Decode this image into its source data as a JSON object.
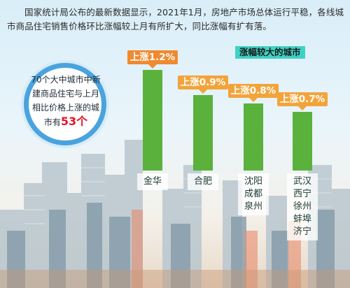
{
  "headline": "国家统计局公布的最新数据显示，2021年1月，房地产市场总体运行平稳，各线城市商品住宅销售价格环比涨幅较上月有所扩大，同比涨幅有扩有落。",
  "callout": {
    "title": "涨幅较大的城市"
  },
  "summary": {
    "text": "70个大中城市中新建商品住宅与上月相比价格上涨的城市有",
    "count": "53个"
  },
  "colors": {
    "bar": "#5ab23c",
    "label": "#f2a43a",
    "circle_ring": "#4aa3de",
    "count": "#e0162b"
  },
  "chart_data": {
    "type": "bar",
    "categories": [
      "金华",
      "合肥",
      "沈阳 成都 泉州",
      "武汉 西宁 徐州 蚌埠 济宁"
    ],
    "values": [
      1.2,
      0.9,
      0.8,
      0.7
    ],
    "value_labels": [
      "上涨1.2%",
      "上涨0.9%",
      "上涨0.8%",
      "上涨0.7%"
    ],
    "category_lines": [
      [
        "金华"
      ],
      [
        "合肥"
      ],
      [
        "沈阳",
        "成都",
        "泉州"
      ],
      [
        "武汉",
        "西宁",
        "徐州",
        "蚌埠",
        "济宁"
      ]
    ],
    "title": "涨幅较大的城市",
    "xlabel": "",
    "ylabel": "",
    "ylim": [
      0,
      1.2
    ]
  }
}
